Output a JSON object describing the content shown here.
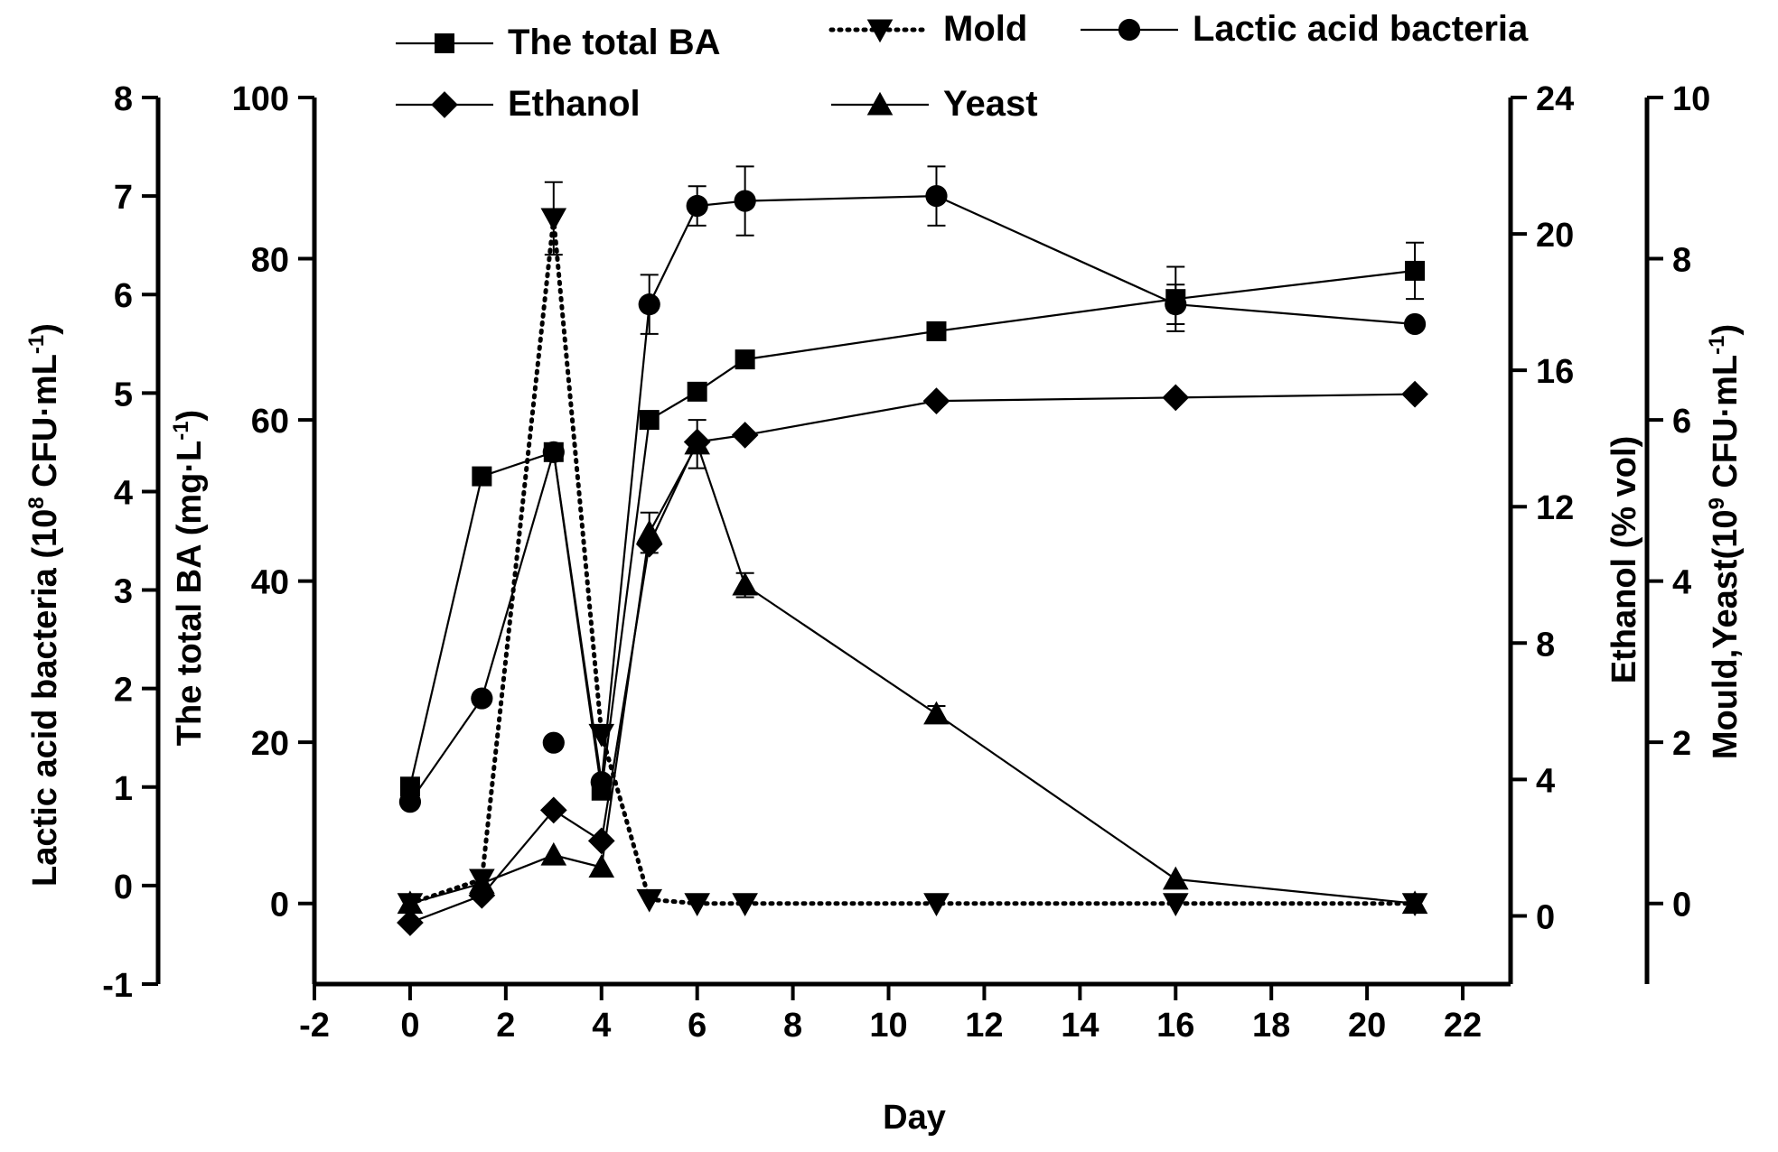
{
  "chart_data": {
    "type": "line",
    "x": [
      0,
      1.5,
      3,
      4,
      5,
      6,
      7,
      11,
      16,
      21
    ],
    "xlabel": "Day",
    "xlim": [
      -2,
      23
    ],
    "xticks": [
      "-2",
      "0",
      "2",
      "4",
      "6",
      "8",
      "10",
      "12",
      "14",
      "16",
      "18",
      "20",
      "22"
    ],
    "axes": {
      "lab": {
        "label_main": "Lactic acid bacteria (10",
        "label_sup1": "8",
        "label_mid": " CFU·mL",
        "label_sup2": "-1",
        "label_end": ")",
        "lim": [
          -1,
          8
        ],
        "ticks": [
          "-1",
          "0",
          "1",
          "2",
          "3",
          "4",
          "5",
          "6",
          "7",
          "8"
        ],
        "position": "far-left"
      },
      "ba": {
        "label_main": "The total BA (mg·L",
        "label_sup1": "-1",
        "label_end": ")",
        "lim": [
          -10,
          100
        ],
        "ticks": [
          "0",
          "20",
          "40",
          "60",
          "80",
          "100"
        ],
        "position": "left"
      },
      "eth": {
        "label": "Ethanol (% vol)",
        "lim": [
          -2,
          24
        ],
        "ticks": [
          "0",
          "4",
          "8",
          "12",
          "16",
          "20",
          "24"
        ],
        "position": "right"
      },
      "my": {
        "label_main": "Mould,Yeast(10",
        "label_sup1": "9",
        "label_mid": " CFU·mL",
        "label_sup2": "-1",
        "label_end": ")",
        "lim": [
          -1,
          10
        ],
        "ticks": [
          "0",
          "2",
          "4",
          "6",
          "8",
          "10"
        ],
        "position": "far-right"
      }
    },
    "series": [
      {
        "name": "The total BA",
        "axis": "ba",
        "marker": "square",
        "dash": "solid",
        "values": [
          14.5,
          53,
          56,
          14,
          60,
          63.5,
          67.5,
          71,
          75,
          78.5
        ],
        "errors": [
          0,
          0,
          0,
          0,
          0,
          0,
          0,
          0,
          4,
          3.5
        ]
      },
      {
        "name": "Ethanol",
        "axis": "eth",
        "marker": "diamond",
        "dash": "solid",
        "values": [
          -0.2,
          0.6,
          3.1,
          2.2,
          10.9,
          13.9,
          14.1,
          15.1,
          15.2,
          15.3
        ],
        "errors": [
          0,
          0,
          0,
          0,
          0,
          0,
          0,
          0,
          0,
          0
        ]
      },
      {
        "name": "Mold",
        "axis": "my",
        "marker": "triangle-down",
        "dash": "dotted",
        "values": [
          0,
          0.3,
          8.5,
          2.1,
          0.05,
          0,
          0,
          0,
          0,
          0
        ],
        "errors": [
          0,
          0,
          0.45,
          0,
          0,
          0,
          0,
          0,
          0,
          0
        ]
      },
      {
        "name": "Lactic acid bacteria",
        "axis": "lab",
        "marker": "circle",
        "dash": "solid",
        "values": [
          0.85,
          1.9,
          4.4,
          1.05,
          5.9,
          6.9,
          6.95,
          7.0,
          5.9,
          5.7
        ],
        "errors": [
          0,
          0,
          0,
          0,
          0.3,
          0.2,
          0.35,
          0.3,
          0.2,
          0
        ],
        "extra_points": [
          {
            "x": 3,
            "y": 1.45
          }
        ]
      },
      {
        "name": "Yeast",
        "axis": "my",
        "marker": "triangle-up",
        "dash": "solid",
        "values": [
          0,
          0.25,
          0.6,
          0.45,
          4.6,
          5.7,
          3.95,
          2.35,
          0.3,
          0
        ],
        "errors": [
          0,
          0,
          0,
          0,
          0.25,
          0.3,
          0.15,
          0.1,
          0,
          0
        ]
      }
    ],
    "legend_placement": "top"
  }
}
